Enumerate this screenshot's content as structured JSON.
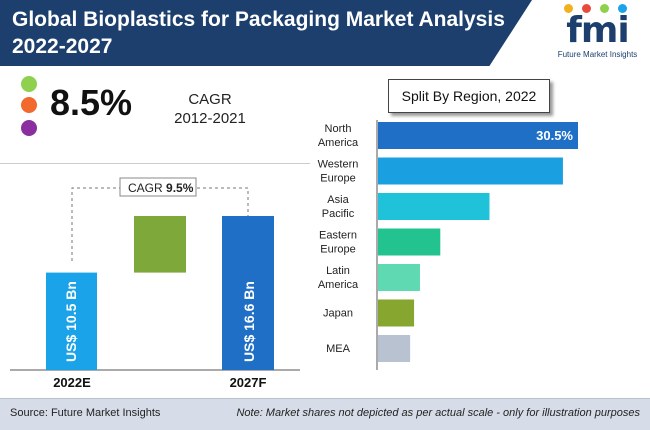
{
  "header": {
    "title_line1": "Global Bioplastics for Packaging Market Analysis",
    "title_line2": "2022-2027",
    "logo_text": "fmi",
    "logo_sub": "Future Market Insights"
  },
  "colors": {
    "accent": "#1c3f6e",
    "cyan": "#1aa3e8",
    "blue": "#1f6fc7",
    "green": "#7ea83a"
  },
  "kpi": {
    "cagr_value": "8.5%",
    "cagr_label_line1": "CAGR",
    "cagr_label_line2": "2012-2021",
    "dot_colors": [
      "#8fd14f",
      "#f2692e",
      "#8a2ea0"
    ]
  },
  "growth_chart": {
    "cagr_tag": "CAGR",
    "cagr_value": "9.5%",
    "bars": [
      {
        "label": "2022E",
        "text": "US$ 10.5 Bn",
        "value": 10.5,
        "color": "#1aa3e8"
      },
      {
        "label": "2027F",
        "text": "US$ 16.6 Bn",
        "value": 16.6,
        "color": "#1f6fc7"
      }
    ],
    "increment_color": "#7ea83a"
  },
  "chart_data": {
    "type": "bar",
    "title": "Split By Region, 2022",
    "categories": [
      "North America",
      "Western Europe",
      "Asia Pacific",
      "Eastern Europe",
      "Latin America",
      "Japan",
      "MEA"
    ],
    "category_lines": [
      [
        "North",
        "America"
      ],
      [
        "Western",
        "Europe"
      ],
      [
        "Asia",
        "Pacific"
      ],
      [
        "Eastern",
        "Europe"
      ],
      [
        "Latin",
        "America"
      ],
      [
        "Japan"
      ],
      [
        "MEA"
      ]
    ],
    "values": [
      30.5,
      28.2,
      17.0,
      9.5,
      6.4,
      5.5,
      4.9
    ],
    "data_labels": [
      "30.5%",
      "",
      "",
      "",
      "",
      "",
      ""
    ],
    "colors": [
      "#1f6fc7",
      "#1a9fe0",
      "#1fc2d8",
      "#22c38f",
      "#5fd9b2",
      "#86a62f",
      "#b9c2d0"
    ],
    "orientation": "horizontal"
  },
  "footer": {
    "source": "Source: Future Market Insights",
    "note": "Note: Market shares not depicted as per actual scale - only for illustration purposes"
  }
}
